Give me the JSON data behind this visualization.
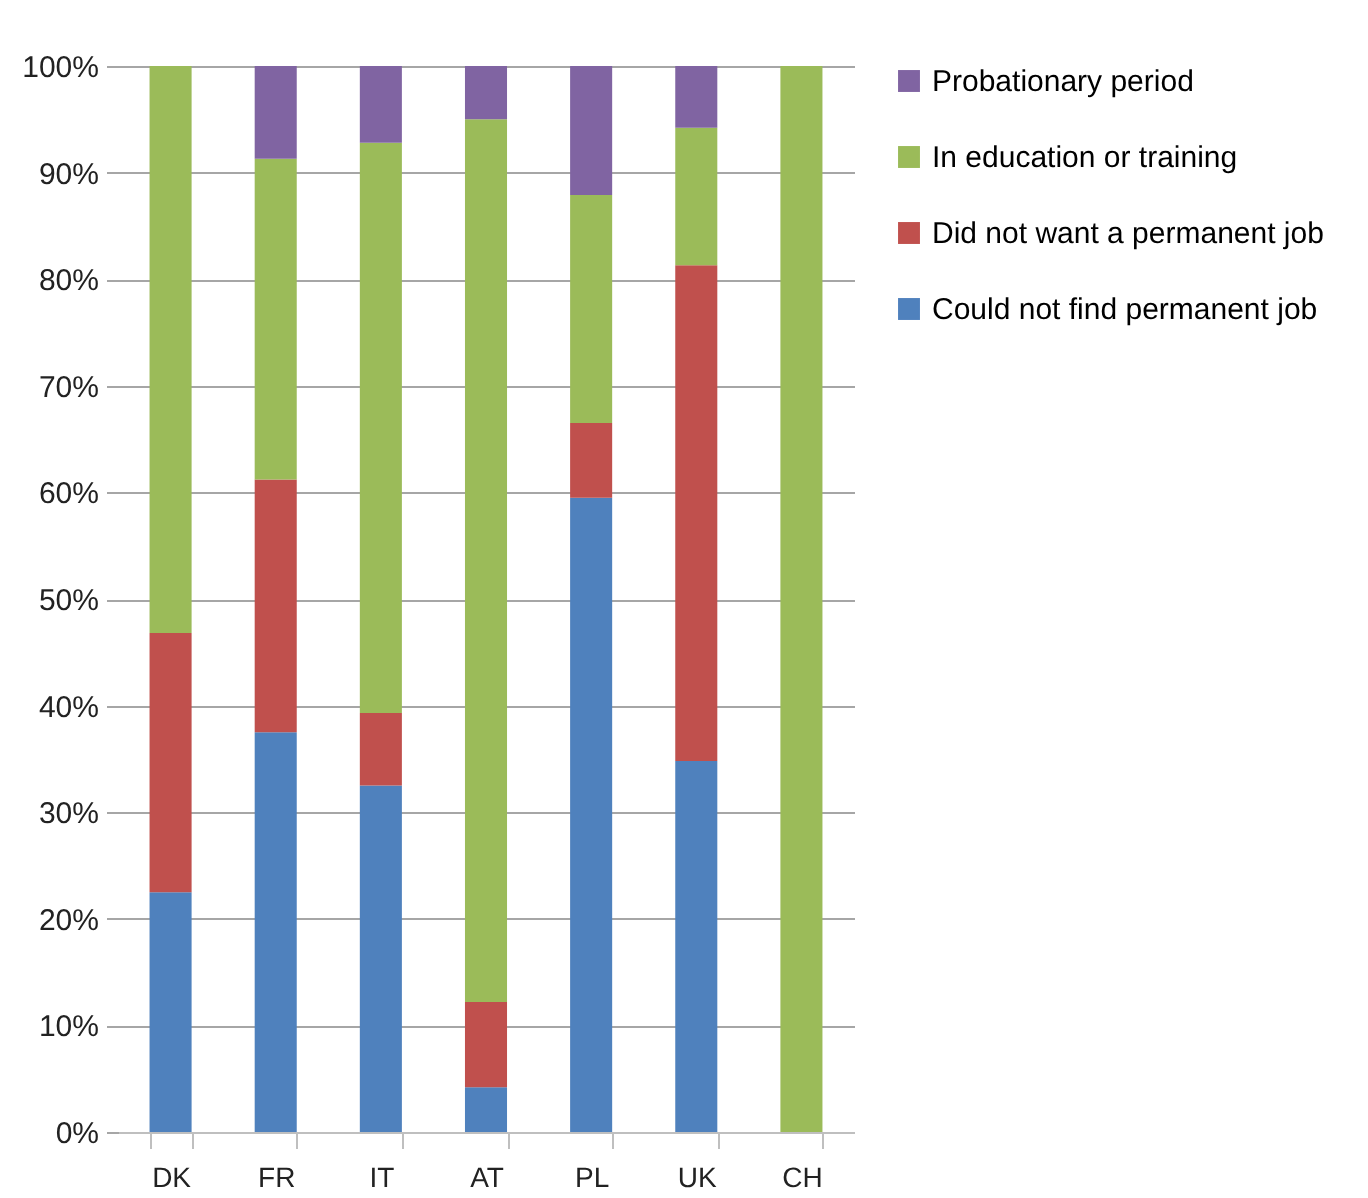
{
  "chart_data": {
    "type": "bar",
    "stacked": true,
    "categories": [
      "DK",
      "FR",
      "IT",
      "AT",
      "PL",
      "UK",
      "CH"
    ],
    "series": [
      {
        "name": "Could not find permanent job",
        "color": "#4f81bd",
        "values": [
          22.5,
          37.5,
          32.5,
          4.2,
          59.5,
          34.8,
          0
        ]
      },
      {
        "name": "Did not want a permanent job",
        "color": "#c0504d",
        "values": [
          24.3,
          23.7,
          6.8,
          8,
          7,
          46.5,
          0
        ]
      },
      {
        "name": "In education or training",
        "color": "#9bbb59",
        "values": [
          53.2,
          30.1,
          53.5,
          82.8,
          21.4,
          12.9,
          100
        ]
      },
      {
        "name": "Probationary period",
        "color": "#8064a2",
        "values": [
          0,
          8.7,
          7.2,
          5,
          12.1,
          5.8,
          0
        ]
      }
    ],
    "ylim": [
      0,
      100
    ],
    "yticks": [
      {
        "value": 0,
        "label": "0%"
      },
      {
        "value": 10,
        "label": "10%"
      },
      {
        "value": 20,
        "label": "20%"
      },
      {
        "value": 30,
        "label": "30%"
      },
      {
        "value": 40,
        "label": "40%"
      },
      {
        "value": 50,
        "label": "50%"
      },
      {
        "value": 60,
        "label": "60%"
      },
      {
        "value": 70,
        "label": "70%"
      },
      {
        "value": 80,
        "label": "80%"
      },
      {
        "value": 90,
        "label": "90%"
      },
      {
        "value": 100,
        "label": "100%"
      }
    ],
    "grid": "y",
    "legend": "right"
  }
}
